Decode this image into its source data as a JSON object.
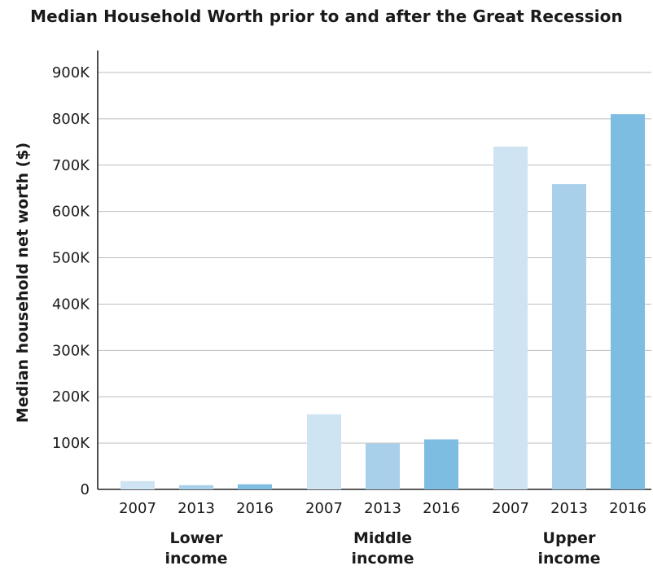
{
  "chart_data": {
    "type": "bar",
    "title": "Median Household Worth prior to and after the Great Recession",
    "ylabel": "Median household net worth ($)",
    "xlabel": "",
    "ylim": [
      0,
      900000
    ],
    "yticks": [
      0,
      100000,
      200000,
      300000,
      400000,
      500000,
      600000,
      700000,
      800000,
      900000
    ],
    "ytick_labels": [
      "0",
      "100K",
      "200K",
      "300K",
      "400K",
      "500K",
      "600K",
      "700K",
      "800K",
      "900K"
    ],
    "grid": true,
    "groups": [
      {
        "label_lines": [
          "Lower",
          "income"
        ],
        "years": [
          "2007",
          "2013",
          "2016"
        ],
        "values": [
          18000,
          9000,
          11000
        ]
      },
      {
        "label_lines": [
          "Middle",
          "income"
        ],
        "years": [
          "2007",
          "2013",
          "2016"
        ],
        "values": [
          162000,
          99000,
          108000
        ]
      },
      {
        "label_lines": [
          "Upper",
          "income"
        ],
        "years": [
          "2007",
          "2013",
          "2016"
        ],
        "values": [
          740000,
          659000,
          810000
        ]
      }
    ],
    "year_colors": {
      "2007": "#cfe4f3",
      "2013": "#a9d0ea",
      "2016": "#7dbde2"
    }
  }
}
